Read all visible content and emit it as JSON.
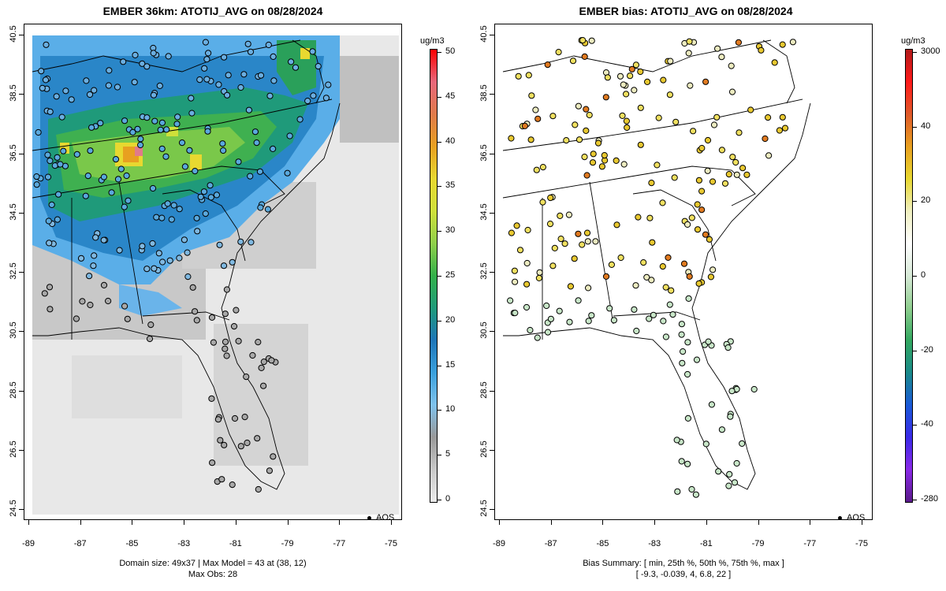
{
  "left_map": {
    "title": "EMBER 36km: ATOTIJ_AVG on 08/28/2024",
    "footer_line1": "Domain size: 49x37 | Max Model = 43 at (38, 12)",
    "footer_line2": "Max Obs: 28",
    "legend_label": "AQS",
    "colorbar": {
      "unit": "ug/m3",
      "labels": [
        "50",
        "45",
        "40",
        "35",
        "30",
        "25",
        "20",
        "15",
        "10",
        "5",
        "0"
      ],
      "colors": [
        "#ff0000",
        "#e8677b",
        "#e07a4a",
        "#e8a020",
        "#e8d830",
        "#cfe03a",
        "#8fcf4a",
        "#33b04a",
        "#1f9a7a",
        "#1d75b8",
        "#3aa0dc",
        "#7fc2ec",
        "#999999",
        "#c8c8c8",
        "#ebebeb"
      ]
    }
  },
  "right_map": {
    "title": "EMBER bias: ATOTIJ_AVG on 08/28/2024",
    "footer_line1": "Bias Summary: [ min, 25th %, 50th %, 75th %, max ]",
    "footer_line2": "[ -9.3,   -0.039,   4,   6.8,   22 ]",
    "legend_label": "AQS",
    "colorbar": {
      "unit": "ug/m3",
      "labels": [
        "3000",
        "40",
        "20",
        "0",
        "-20",
        "-40",
        "-280"
      ],
      "colors": [
        "#b21a1a",
        "#ff1a1a",
        "#e05a2a",
        "#e8a020",
        "#e8d830",
        "#f0f0c0",
        "#ffffff",
        "#d8ead8",
        "#8fcf8f",
        "#33a860",
        "#1a8a8a",
        "#1a5ad8",
        "#3a2ae8",
        "#8a2ae8",
        "#5a1a8a"
      ]
    }
  },
  "axes": {
    "x_ticks": [
      "-89",
      "-87",
      "-85",
      "-83",
      "-81",
      "-79",
      "-77",
      "-75"
    ],
    "y_ticks": [
      "40.5",
      "38.5",
      "36.5",
      "34.5",
      "32.5",
      "30.5",
      "28.5",
      "26.5",
      "24.5"
    ]
  }
}
